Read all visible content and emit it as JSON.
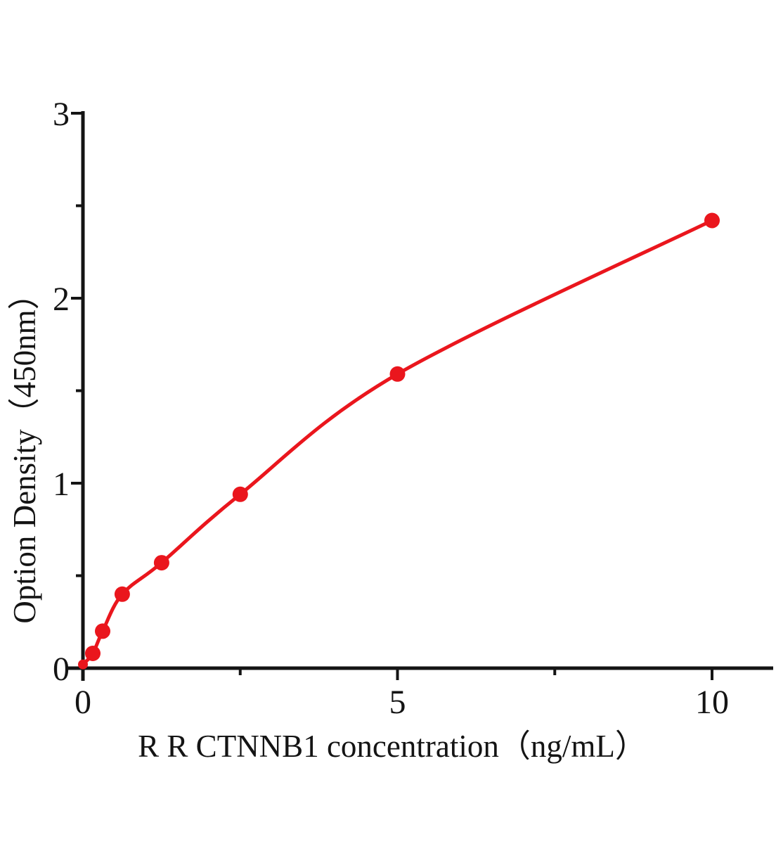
{
  "chart_data": {
    "type": "scatter",
    "title": "",
    "xlabel": "R R CTNNB1  concentration（ng/mL）",
    "ylabel": "Option Density（450nm）",
    "x": [
      0,
      0.156,
      0.3125,
      0.625,
      1.25,
      2.5,
      5,
      10
    ],
    "y": [
      0.02,
      0.08,
      0.2,
      0.4,
      0.57,
      0.94,
      1.59,
      2.42
    ],
    "fit_curve": "smooth monotone curve through all points, drawn point-to-point",
    "xlim": [
      0,
      10
    ],
    "ylim": [
      0,
      3
    ],
    "x_ticks_major": [
      0,
      5,
      10
    ],
    "x_tick_labels": [
      "0",
      "5",
      "10"
    ],
    "x_ticks_minor": [
      2.5,
      7.5
    ],
    "y_ticks_major": [
      0,
      1,
      2,
      3
    ],
    "y_tick_labels": [
      "0",
      "1",
      "2",
      "3"
    ],
    "y_ticks_minor": [
      0.5,
      1.5,
      2.5
    ],
    "grid": false,
    "legend_position": "none",
    "colors": {
      "curve": "#ea161d",
      "points": "#ea161d",
      "axis": "#141414",
      "background": "#ffffff"
    }
  }
}
